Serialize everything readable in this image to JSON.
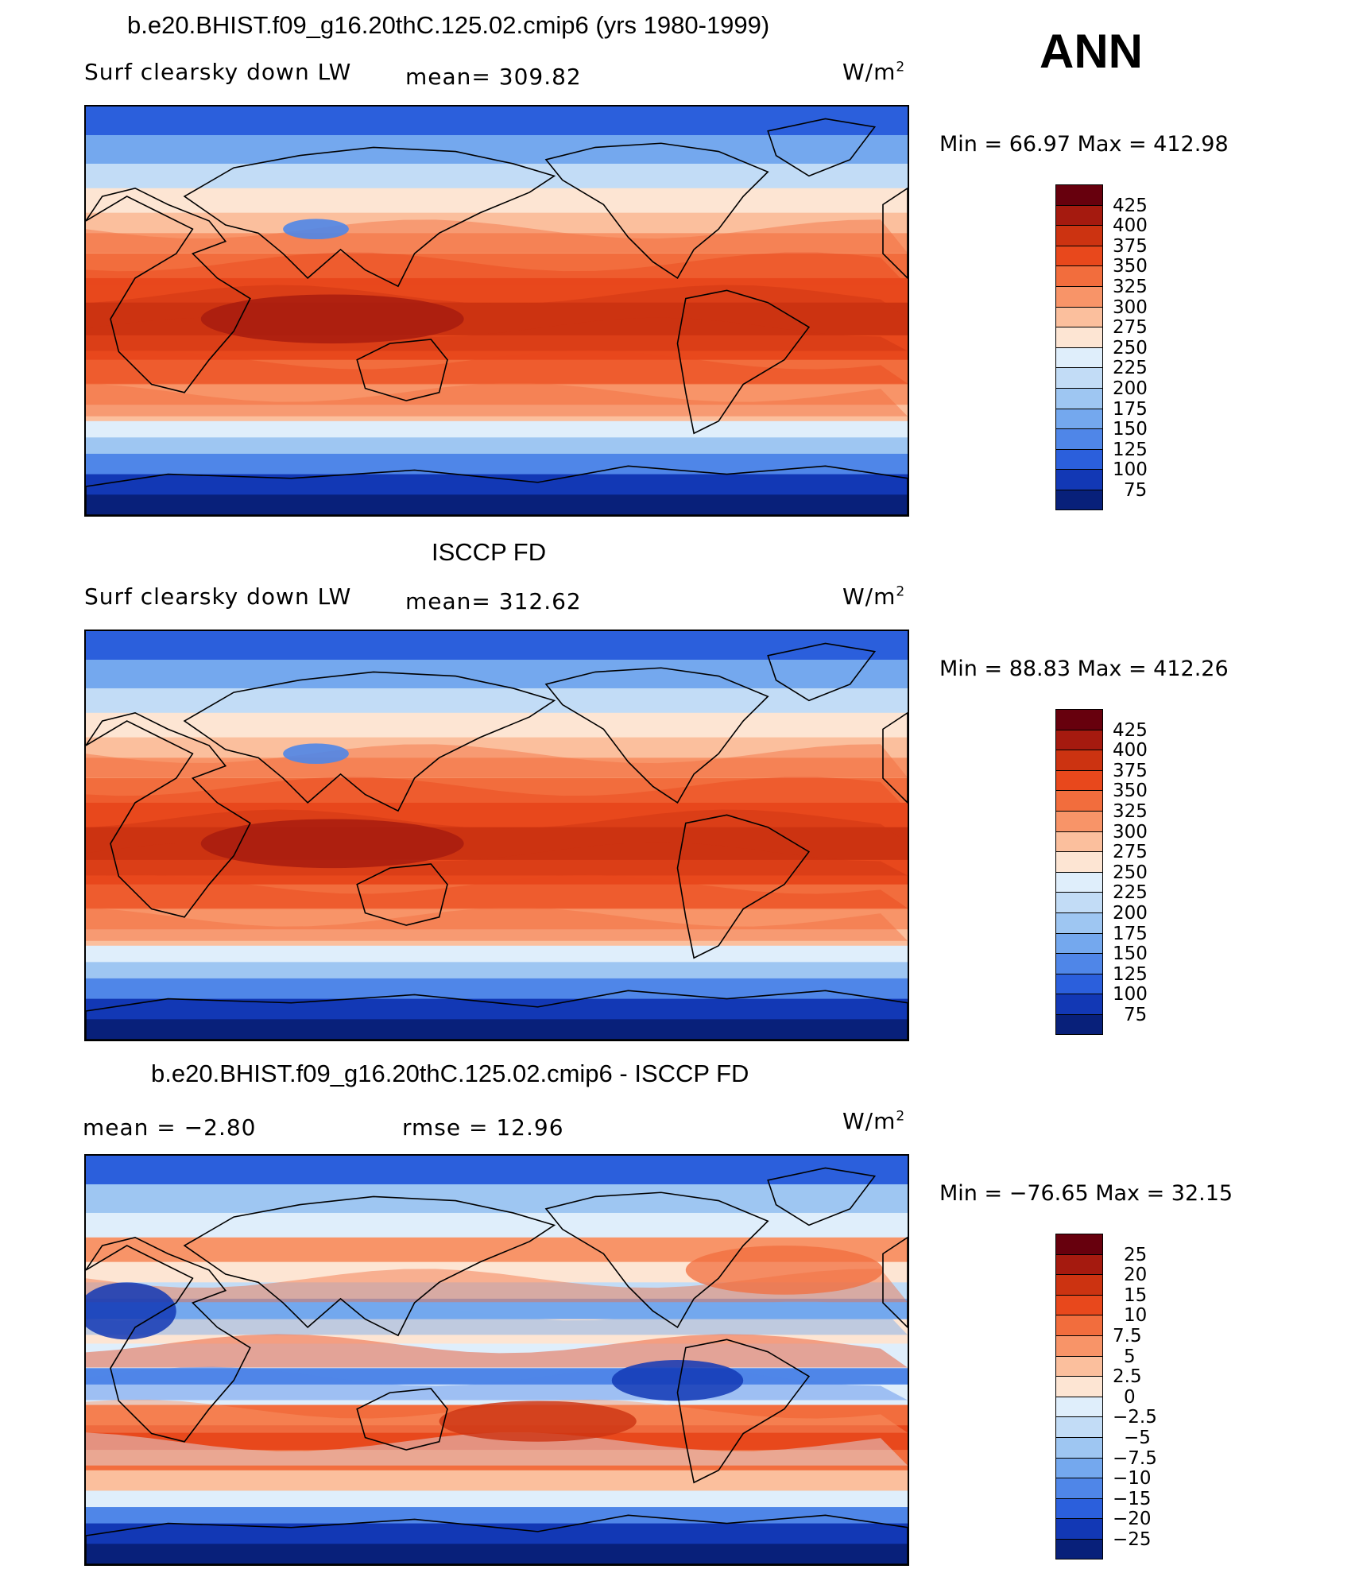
{
  "season": "ANN",
  "panels": [
    {
      "title": "b.e20.BHIST.f09_g16.20thC.125.02.cmip6 (yrs 1980-1999)",
      "variable": "Surf clearsky down LW",
      "stat_left": "",
      "stat": "mean= 309.82",
      "units": "W/m",
      "units_sup": "2",
      "minmax": "Min =   66.97 Max = 412.98",
      "colorbar": [
        "425",
        "400",
        "375",
        "350",
        "325",
        "300",
        "275",
        "250",
        "225",
        "200",
        "175",
        "150",
        "125",
        "100",
        "75"
      ]
    },
    {
      "title": "ISCCP FD",
      "variable": "Surf clearsky down LW",
      "stat_left": "",
      "stat": "mean= 312.62",
      "units": "W/m",
      "units_sup": "2",
      "minmax": "Min =   88.83 Max = 412.26",
      "colorbar": [
        "425",
        "400",
        "375",
        "350",
        "325",
        "300",
        "275",
        "250",
        "225",
        "200",
        "175",
        "150",
        "125",
        "100",
        "75"
      ]
    },
    {
      "title": "b.e20.BHIST.f09_g16.20thC.125.02.cmip6 - ISCCP FD",
      "variable": "",
      "stat_left": "mean =   −2.80",
      "stat": "rmse =   12.96",
      "units": "W/m",
      "units_sup": "2",
      "minmax": "Min = −76.65 Max =   32.15",
      "colorbar": [
        "25",
        "20",
        "15",
        "10",
        "7.5",
        "5",
        "2.5",
        "0",
        "−2.5",
        "−5",
        "−7.5",
        "−10",
        "−15",
        "−20",
        "−25"
      ]
    }
  ],
  "palette": [
    "#67000d",
    "#a51a0f",
    "#cc3311",
    "#e8481c",
    "#f26d3d",
    "#f89468",
    "#fbbf9d",
    "#fde5d3",
    "#dfeefb",
    "#c2dcf6",
    "#9ec6f2",
    "#74a8ee",
    "#4f86e8",
    "#2b5fdc",
    "#1238b5",
    "#08207a"
  ]
}
